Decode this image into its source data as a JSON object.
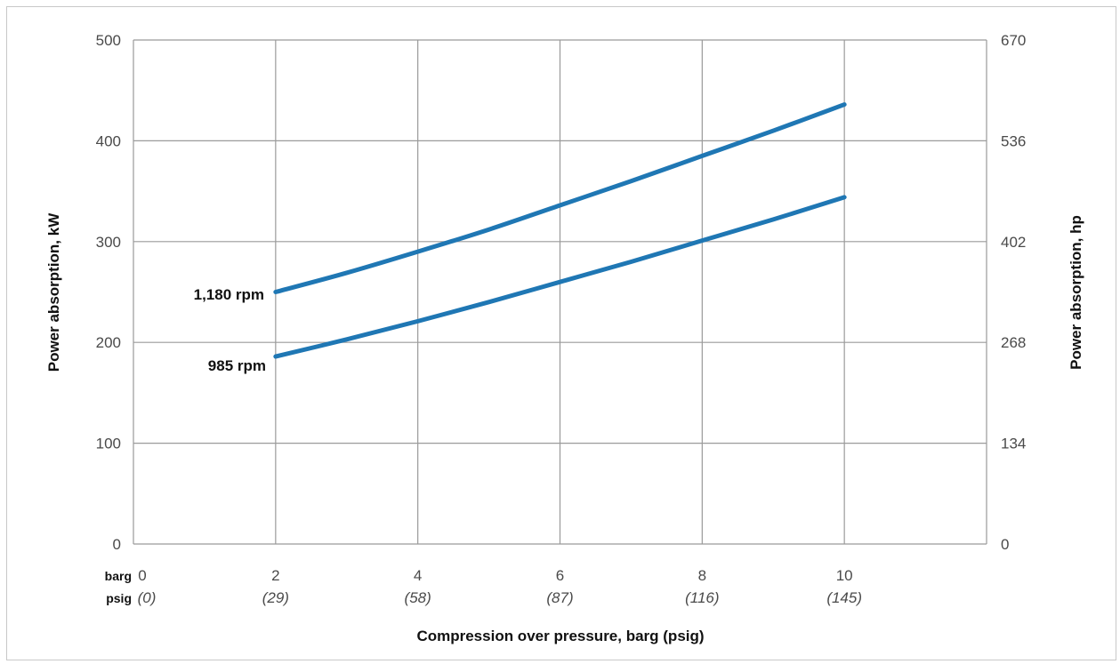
{
  "colors": {
    "grid": "#9a9a9a",
    "line": "#1f77b4",
    "frame": "#c8c8c8"
  },
  "chart_data": {
    "type": "line",
    "x": [
      2,
      3,
      4,
      5,
      6,
      7,
      8,
      9,
      10
    ],
    "series": [
      {
        "name": "1,180 rpm",
        "values": [
          250,
          269,
          290,
          312,
          336,
          360,
          385,
          410,
          436
        ]
      },
      {
        "name": "985 rpm",
        "values": [
          186,
          203,
          221,
          240,
          260,
          280,
          301,
          322,
          344
        ]
      }
    ],
    "xlim": [
      0,
      12
    ],
    "ylim": [
      0,
      500
    ],
    "y2lim": [
      0,
      670
    ],
    "xlabel": "Compression over pressure, barg (psig)",
    "ylabel": "Power absorption, kW",
    "y2label": "Power absorption, hp",
    "x_row_labels": {
      "barg": "barg",
      "psig": "psig"
    },
    "x_ticks": [
      0,
      2,
      4,
      6,
      8,
      10
    ],
    "x_tick_labels_barg": [
      "0",
      "2",
      "4",
      "6",
      "8",
      "10"
    ],
    "x_tick_labels_psig": [
      "(0)",
      "(29)",
      "(58)",
      "(87)",
      "(116)",
      "(145)"
    ],
    "y_ticks": [
      0,
      100,
      200,
      300,
      400,
      500
    ],
    "y_tick_labels": [
      "0",
      "100",
      "200",
      "300",
      "400",
      "500"
    ],
    "y2_tick_labels": [
      "0",
      "134",
      "268",
      "402",
      "536",
      "670"
    ],
    "grid": true,
    "legend": "none"
  }
}
